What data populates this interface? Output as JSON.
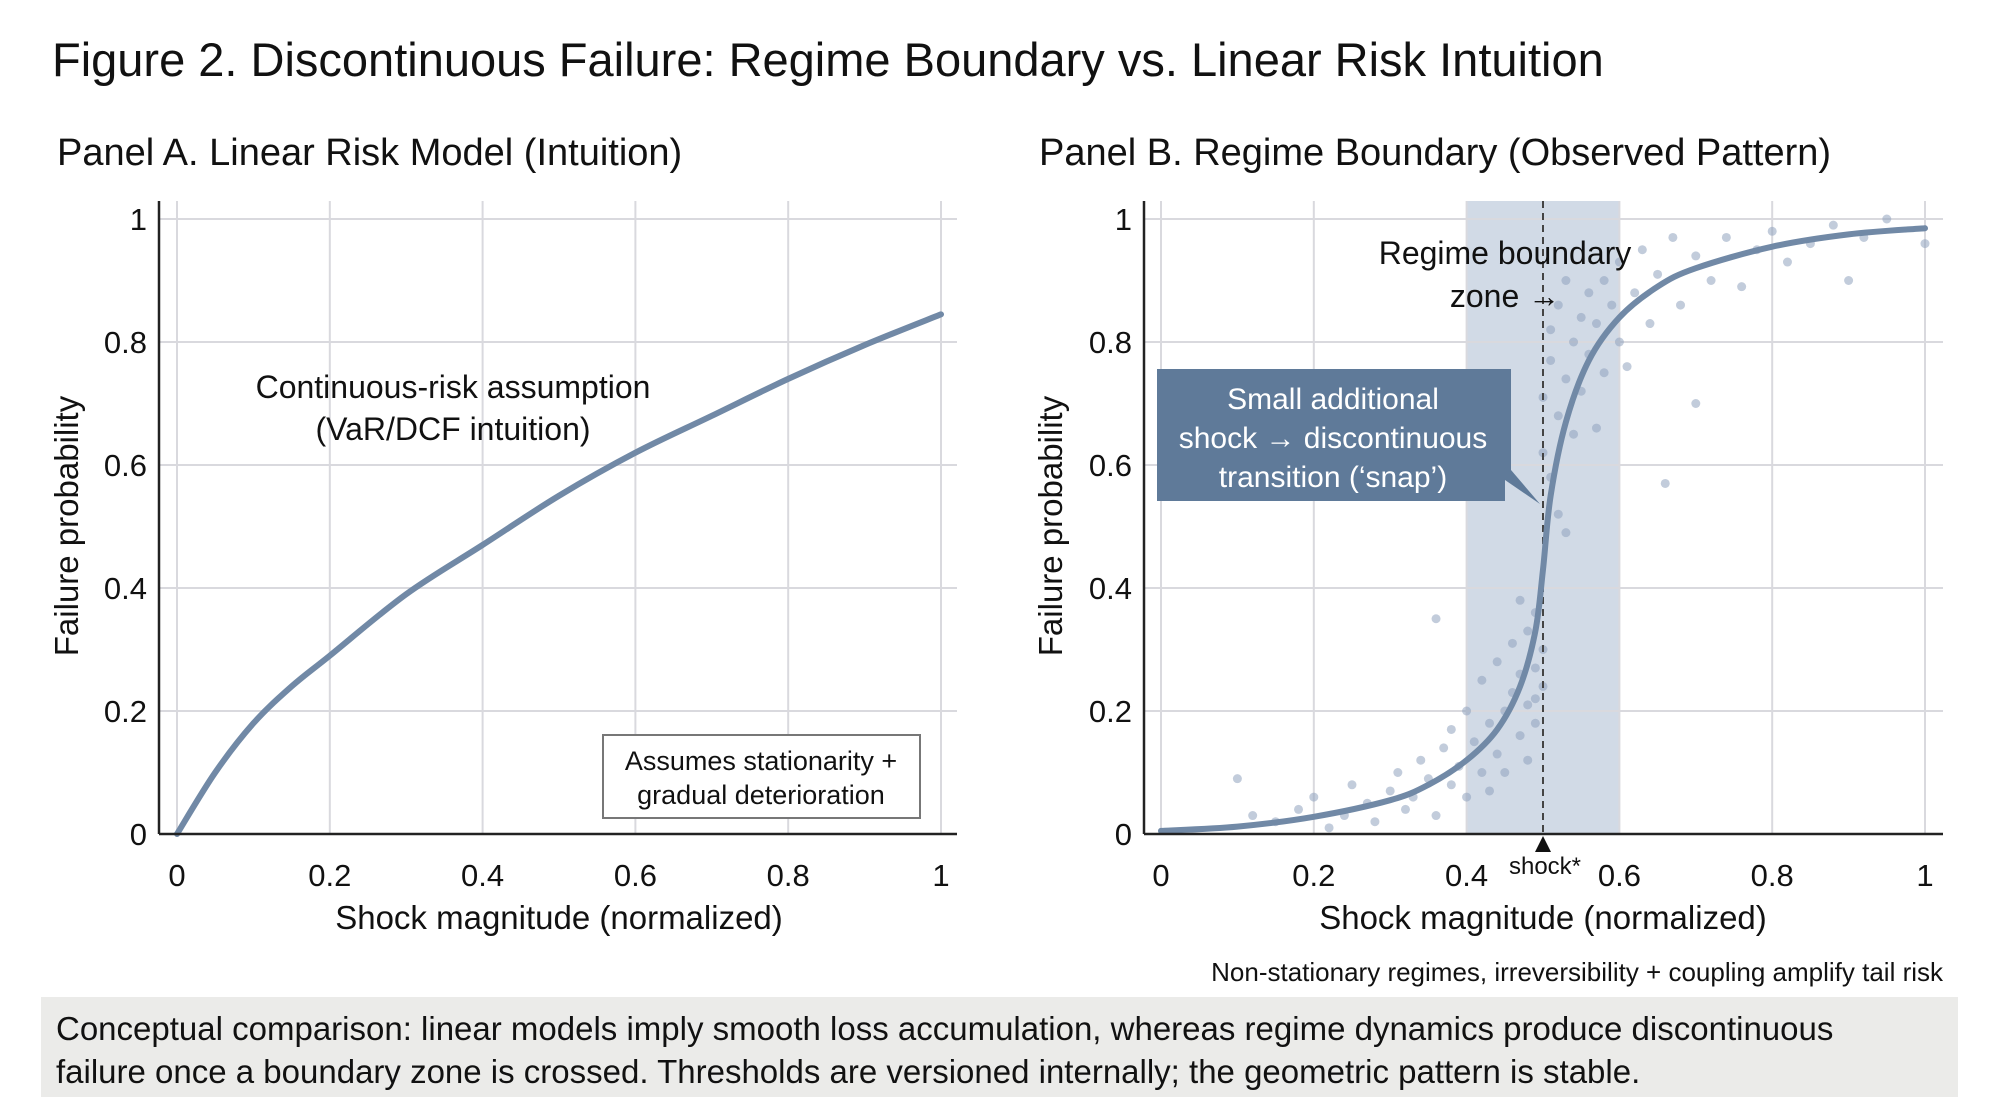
{
  "title": "Figure 2. Discontinuous Failure: Regime Boundary vs. Linear Risk Intuition",
  "footer": {
    "line1": "Conceptual comparison: linear models imply smooth loss accumulation, whereas regime dynamics produce discontinuous",
    "line2": "failure once a boundary zone is crossed. Thresholds are versioned internally; the geometric pattern is stable."
  },
  "colors": {
    "curve": "#7189a6",
    "zone": "#c9d4e2",
    "callout": "#5f7a99",
    "points": "#8fa3bd",
    "footer_bg": "#ebebe9"
  },
  "chart_data": [
    {
      "type": "line",
      "title": "Panel A. Linear Risk Model (Intuition)",
      "xlabel": "Shock magnitude (normalized)",
      "ylabel": "Failure probability",
      "xlim": [
        0,
        1
      ],
      "ylim": [
        0,
        1
      ],
      "xticks": [
        "0",
        "0.2",
        "0.4",
        "0.6",
        "0.8",
        "1"
      ],
      "yticks": [
        "0",
        "0.2",
        "0.4",
        "0.6",
        "0.8",
        "1"
      ],
      "grid": true,
      "x": [
        0,
        0.05,
        0.1,
        0.15,
        0.2,
        0.3,
        0.4,
        0.5,
        0.6,
        0.7,
        0.8,
        0.9,
        1.0
      ],
      "y": [
        0,
        0.1,
        0.18,
        0.24,
        0.29,
        0.39,
        0.47,
        0.55,
        0.62,
        0.68,
        0.74,
        0.795,
        0.845
      ],
      "annotations": {
        "curve_label_1": "Continuous-risk assumption",
        "curve_label_2": "(VaR/DCF intuition)",
        "box_line1": "Assumes stationarity +",
        "box_line2": "gradual deterioration"
      }
    },
    {
      "type": "line",
      "title": "Panel B. Regime Boundary (Observed Pattern)",
      "xlabel": "Shock magnitude (normalized)",
      "ylabel": "Failure probability",
      "xlim": [
        0,
        1
      ],
      "ylim": [
        0,
        1
      ],
      "xticks": [
        "0",
        "0.2",
        "0.4",
        "0.6",
        "0.8",
        "1"
      ],
      "yticks": [
        "0",
        "0.2",
        "0.4",
        "0.6",
        "0.8",
        "1"
      ],
      "grid": true,
      "boundary_zone": [
        0.4,
        0.6
      ],
      "shock_threshold": 0.5,
      "shock_label": "shock*",
      "x": [
        0,
        0.1,
        0.2,
        0.3,
        0.35,
        0.4,
        0.44,
        0.47,
        0.49,
        0.5,
        0.51,
        0.53,
        0.56,
        0.6,
        0.65,
        0.7,
        0.8,
        0.9,
        1.0
      ],
      "y": [
        0.005,
        0.012,
        0.028,
        0.055,
        0.08,
        0.12,
        0.17,
        0.24,
        0.33,
        0.43,
        0.55,
        0.67,
        0.77,
        0.84,
        0.89,
        0.92,
        0.955,
        0.975,
        0.985
      ],
      "scatter": [
        [
          0.1,
          0.09
        ],
        [
          0.12,
          0.03
        ],
        [
          0.15,
          0.02
        ],
        [
          0.18,
          0.04
        ],
        [
          0.2,
          0.06
        ],
        [
          0.22,
          0.01
        ],
        [
          0.24,
          0.03
        ],
        [
          0.25,
          0.08
        ],
        [
          0.27,
          0.05
        ],
        [
          0.28,
          0.02
        ],
        [
          0.3,
          0.07
        ],
        [
          0.31,
          0.1
        ],
        [
          0.32,
          0.04
        ],
        [
          0.33,
          0.06
        ],
        [
          0.34,
          0.12
        ],
        [
          0.35,
          0.09
        ],
        [
          0.36,
          0.03
        ],
        [
          0.36,
          0.35
        ],
        [
          0.37,
          0.14
        ],
        [
          0.38,
          0.08
        ],
        [
          0.38,
          0.17
        ],
        [
          0.39,
          0.11
        ],
        [
          0.4,
          0.2
        ],
        [
          0.4,
          0.06
        ],
        [
          0.41,
          0.15
        ],
        [
          0.42,
          0.1
        ],
        [
          0.42,
          0.25
        ],
        [
          0.43,
          0.18
        ],
        [
          0.43,
          0.07
        ],
        [
          0.44,
          0.13
        ],
        [
          0.44,
          0.28
        ],
        [
          0.45,
          0.2
        ],
        [
          0.45,
          0.1
        ],
        [
          0.46,
          0.23
        ],
        [
          0.46,
          0.31
        ],
        [
          0.47,
          0.16
        ],
        [
          0.47,
          0.26
        ],
        [
          0.47,
          0.38
        ],
        [
          0.48,
          0.21
        ],
        [
          0.48,
          0.12
        ],
        [
          0.48,
          0.33
        ],
        [
          0.49,
          0.27
        ],
        [
          0.49,
          0.18
        ],
        [
          0.49,
          0.36
        ],
        [
          0.49,
          0.22
        ],
        [
          0.5,
          0.3
        ],
        [
          0.5,
          0.24
        ],
        [
          0.5,
          0.62
        ],
        [
          0.5,
          0.71
        ],
        [
          0.51,
          0.58
        ],
        [
          0.51,
          0.77
        ],
        [
          0.51,
          0.82
        ],
        [
          0.52,
          0.52
        ],
        [
          0.52,
          0.68
        ],
        [
          0.52,
          0.86
        ],
        [
          0.53,
          0.74
        ],
        [
          0.53,
          0.49
        ],
        [
          0.53,
          0.9
        ],
        [
          0.54,
          0.8
        ],
        [
          0.54,
          0.65
        ],
        [
          0.55,
          0.84
        ],
        [
          0.55,
          0.72
        ],
        [
          0.56,
          0.88
        ],
        [
          0.56,
          0.78
        ],
        [
          0.57,
          0.83
        ],
        [
          0.57,
          0.66
        ],
        [
          0.58,
          0.9
        ],
        [
          0.58,
          0.75
        ],
        [
          0.59,
          0.86
        ],
        [
          0.6,
          0.93
        ],
        [
          0.6,
          0.8
        ],
        [
          0.61,
          0.76
        ],
        [
          0.62,
          0.88
        ],
        [
          0.63,
          0.95
        ],
        [
          0.64,
          0.83
        ],
        [
          0.65,
          0.91
        ],
        [
          0.66,
          0.57
        ],
        [
          0.67,
          0.97
        ],
        [
          0.68,
          0.86
        ],
        [
          0.7,
          0.94
        ],
        [
          0.7,
          0.7
        ],
        [
          0.72,
          0.9
        ],
        [
          0.74,
          0.97
        ],
        [
          0.76,
          0.89
        ],
        [
          0.78,
          0.95
        ],
        [
          0.8,
          0.98
        ],
        [
          0.82,
          0.93
        ],
        [
          0.85,
          0.96
        ],
        [
          0.88,
          0.99
        ],
        [
          0.9,
          0.9
        ],
        [
          0.92,
          0.97
        ],
        [
          0.95,
          1.0
        ],
        [
          1.0,
          0.96
        ]
      ],
      "annotations": {
        "zone_label_1": "Regime boundary",
        "zone_label_2": "zone →",
        "callout_1": "Small additional",
        "callout_2": "shock → discontinuous",
        "callout_3": "transition (‘snap’)",
        "note": "Non-stationary regimes, irreversibility + coupling amplify tail risk"
      }
    }
  ]
}
